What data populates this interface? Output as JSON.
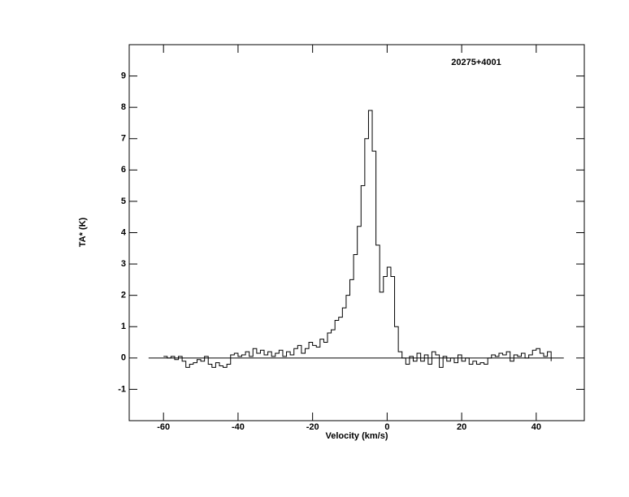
{
  "chart_data": {
    "type": "step",
    "title": "20275+4001",
    "xlabel": "Velocity (km/s)",
    "ylabel": "TA* (K)",
    "xlim": [
      -69.2,
      52.9
    ],
    "ylim": [
      -2,
      10
    ],
    "xticks": [
      -60,
      -40,
      -20,
      0,
      20,
      40
    ],
    "yticks": [
      -1,
      0,
      1,
      2,
      3,
      4,
      5,
      6,
      7,
      8,
      9
    ],
    "baseline": {
      "x": [
        -64,
        47.4
      ],
      "y": 0
    },
    "series": [
      {
        "color": "#000000",
        "x": [
          -60,
          -59,
          -58,
          -57,
          -56,
          -55,
          -54,
          -53,
          -52,
          -51,
          -50,
          -49,
          -48,
          -47,
          -46,
          -45,
          -44,
          -43,
          -42,
          -41,
          -40,
          -39,
          -38,
          -37,
          -36,
          -35,
          -34,
          -33,
          -32,
          -31,
          -30,
          -29,
          -28,
          -27,
          -26,
          -25,
          -24,
          -23,
          -22,
          -21,
          -20,
          -19,
          -18,
          -17,
          -16,
          -15,
          -14,
          -13,
          -12,
          -11,
          -10,
          -9,
          -8,
          -7,
          -6,
          -5,
          -4,
          -3,
          -2,
          -1,
          0,
          1,
          2,
          3,
          4,
          5,
          6,
          7,
          8,
          9,
          10,
          11,
          12,
          13,
          14,
          15,
          16,
          17,
          18,
          19,
          20,
          21,
          22,
          23,
          24,
          25,
          26,
          27,
          28,
          29,
          30,
          31,
          32,
          33,
          34,
          35,
          36,
          37,
          38,
          39,
          40,
          41,
          42,
          43,
          44
        ],
        "values": [
          0.05,
          0.0,
          0.05,
          -0.05,
          0.05,
          -0.1,
          -0.3,
          -0.2,
          -0.15,
          -0.05,
          -0.1,
          0.05,
          -0.2,
          -0.3,
          -0.15,
          -0.25,
          -0.3,
          -0.2,
          0.1,
          0.15,
          0.05,
          0.1,
          0.2,
          0.05,
          0.3,
          0.15,
          0.25,
          0.1,
          0.2,
          0.05,
          0.15,
          0.25,
          0.05,
          0.2,
          0.1,
          0.3,
          0.4,
          0.15,
          0.3,
          0.5,
          0.4,
          0.35,
          0.6,
          0.5,
          0.8,
          0.9,
          1.2,
          1.3,
          1.6,
          2.0,
          2.5,
          3.3,
          4.2,
          5.5,
          7.0,
          7.9,
          6.6,
          3.6,
          2.1,
          2.6,
          2.9,
          2.6,
          1.0,
          0.2,
          0.0,
          -0.2,
          0.05,
          -0.1,
          0.15,
          -0.1,
          0.1,
          -0.2,
          0.2,
          0.1,
          -0.3,
          0.05,
          -0.1,
          0.0,
          -0.15,
          0.1,
          -0.1,
          0.0,
          -0.2,
          -0.1,
          -0.2,
          -0.15,
          -0.2,
          0.0,
          0.1,
          0.05,
          0.15,
          0.1,
          0.2,
          -0.1,
          0.1,
          0.05,
          0.15,
          0.0,
          0.1,
          0.25,
          0.3,
          0.15,
          0.05,
          0.2,
          -0.1
        ]
      }
    ]
  }
}
